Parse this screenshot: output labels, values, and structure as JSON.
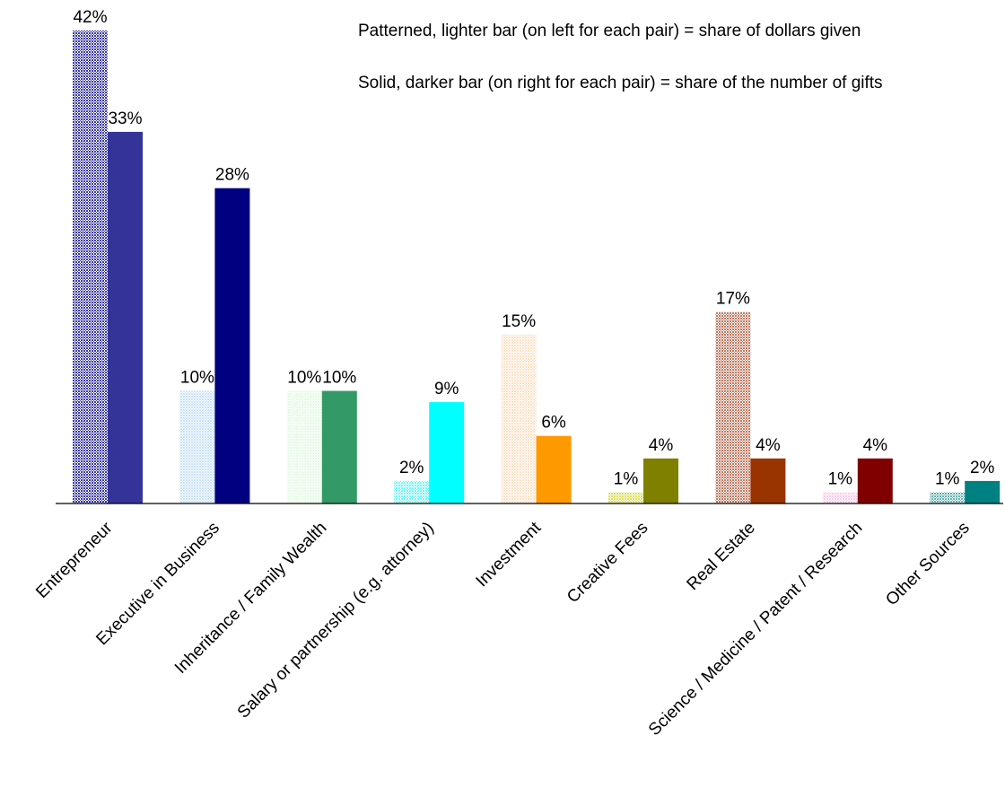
{
  "notes": {
    "patterned": "Patterned, lighter bar (on left for each pair) = share of dollars given",
    "solid": "Solid, darker bar (on right for each pair) = share of the number of gifts"
  },
  "chart_data": {
    "type": "bar",
    "title": "",
    "xlabel": "",
    "ylabel": "",
    "ylim": [
      0,
      42
    ],
    "grid": false,
    "value_format": "percent",
    "categories": [
      "Entrepreneur",
      "Executive in Business",
      "Inheritance / Family Wealth",
      "Salary or partnership (e.g. attorney)",
      "Investment",
      "Creative Fees",
      "Real Estate",
      "Science / Medicine / Patent / Research",
      "Other Sources"
    ],
    "series": [
      {
        "style": "patterned",
        "values": [
          42,
          10,
          10,
          2,
          15,
          1,
          17,
          1,
          1
        ],
        "value_labels": [
          "42%",
          "10%",
          "10%",
          "2%",
          "15%",
          "1%",
          "17%",
          "1%",
          "1%"
        ],
        "colors": [
          "#3a3aa6",
          "#c6e1fa",
          "#e4fbe4",
          "#77f7f5",
          "#fde2c6",
          "#dede5e",
          "#c07860",
          "#fbcbe8",
          "#66b5b4"
        ]
      },
      {
        "style": "solid",
        "values": [
          33,
          28,
          10,
          9,
          6,
          4,
          4,
          4,
          2
        ],
        "value_labels": [
          "33%",
          "28%",
          "10%",
          "9%",
          "6%",
          "4%",
          "4%",
          "4%",
          "2%"
        ],
        "colors": [
          "#343498",
          "#000080",
          "#339966",
          "#00ffff",
          "#ff9900",
          "#808000",
          "#993300",
          "#800000",
          "#008080"
        ]
      }
    ]
  }
}
